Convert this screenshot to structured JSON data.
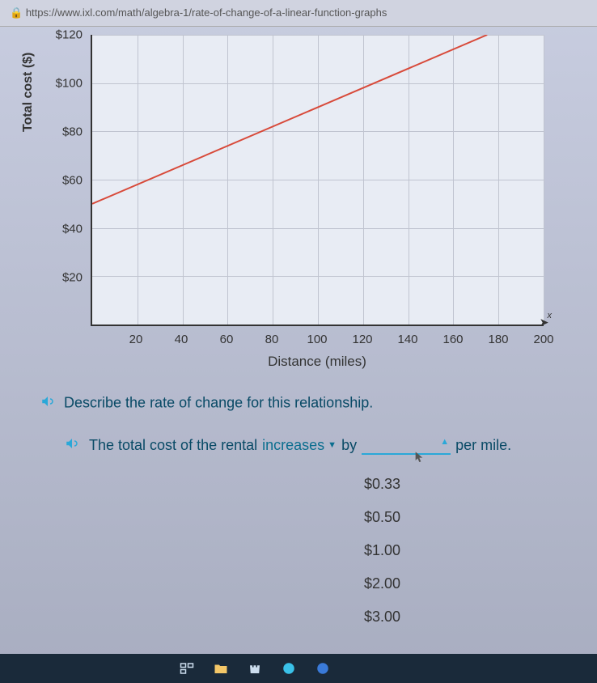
{
  "url": "https://www.ixl.com/math/algebra-1/rate-of-change-of-a-linear-function-graphs",
  "chart": {
    "type": "line",
    "y_label": "Total cost ($)",
    "x_label": "Distance (miles)",
    "x_ticks": [
      20,
      40,
      60,
      80,
      100,
      120,
      140,
      160,
      180,
      200
    ],
    "y_ticks": [
      "$20",
      "$40",
      "$60",
      "$80",
      "$100",
      "$120"
    ],
    "y_tick_values": [
      20,
      40,
      60,
      80,
      100,
      120
    ],
    "xlim": [
      0,
      200
    ],
    "ylim": [
      0,
      120
    ],
    "line_points": [
      [
        0,
        50
      ],
      [
        200,
        130
      ]
    ],
    "line_color": "#d84a3a",
    "line_width": 2,
    "grid_color": "#c0c4d0",
    "background_color": "#e8ecf4",
    "axis_color": "#333333",
    "tick_fontsize": 15,
    "label_fontsize": 17,
    "axis_arrow": "x"
  },
  "question": {
    "prompt": "Describe the rate of change for this relationship.",
    "sentence_prefix": "The total cost of the rental",
    "dropdown1_value": "increases",
    "connector": "by",
    "blank_value": "",
    "suffix": "per mile.",
    "options": [
      "$0.33",
      "$0.50",
      "$1.00",
      "$2.00",
      "$3.00"
    ]
  },
  "colors": {
    "page_bg_top": "#c8cde0",
    "page_bg_bottom": "#a8adc0",
    "text_primary": "#333333",
    "text_link": "#094a66",
    "accent": "#2aa8d8"
  }
}
